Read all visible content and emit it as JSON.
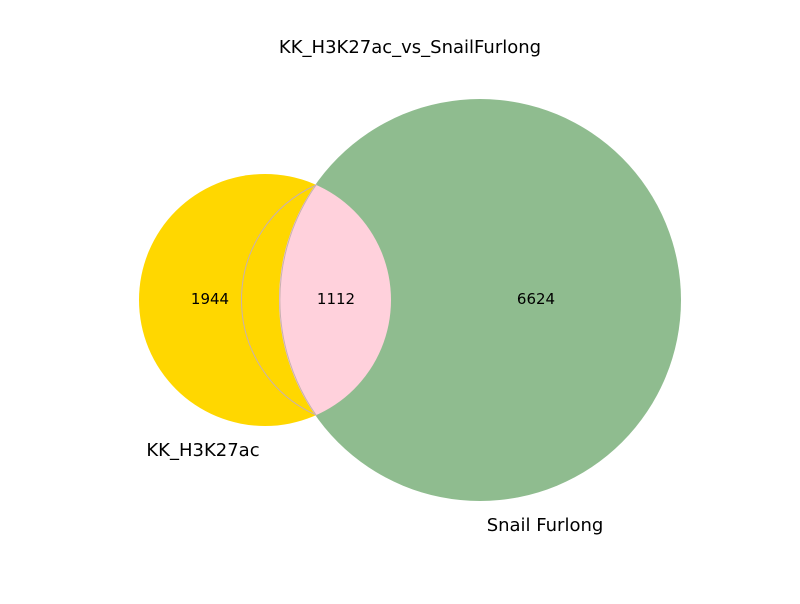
{
  "chart_data": {
    "type": "venn",
    "title": "KK_H3K27ac_vs_SnailFurlong",
    "sets": [
      {
        "name": "KK_H3K27ac",
        "only_count": 1944,
        "color": "#FFD700"
      },
      {
        "name": "Snail Furlong",
        "only_count": 6624,
        "color": "#8FBC8F"
      }
    ],
    "intersection": {
      "count": 1112,
      "color": "#FFD1DC"
    }
  },
  "labels": {
    "title": "KK_H3K27ac_vs_SnailFurlong",
    "set_a": "KK_H3K27ac",
    "set_b": "Snail Furlong",
    "a_only": "1944",
    "intersection": "1112",
    "b_only": "6624"
  }
}
